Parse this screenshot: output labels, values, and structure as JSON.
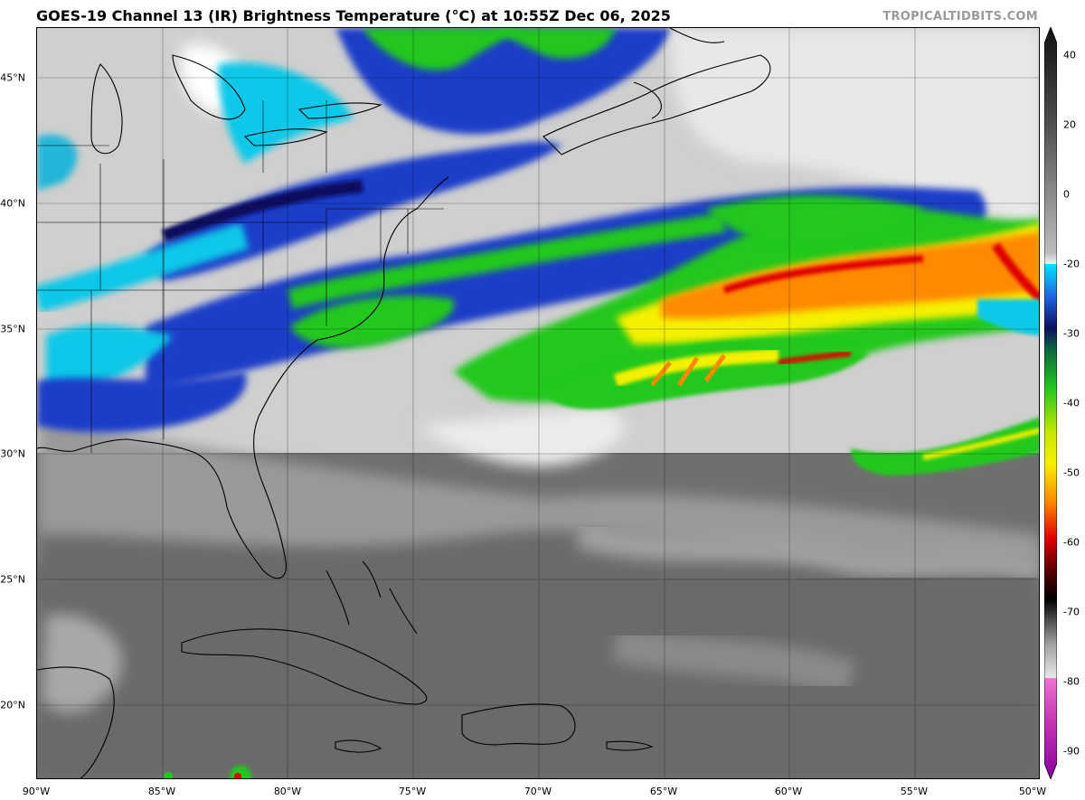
{
  "header": {
    "title": "GOES-19 Channel 13 (IR) Brightness Temperature (°C) at 10:55Z Dec 06, 2025",
    "credit": "TROPICALTIDBITS.COM"
  },
  "map": {
    "lat_labels": [
      "45°N",
      "40°N",
      "35°N",
      "30°N",
      "25°N",
      "20°N"
    ],
    "lon_labels": [
      "90°W",
      "85°W",
      "80°W",
      "75°W",
      "70°W",
      "65°W",
      "60°W",
      "55°W",
      "50°W"
    ],
    "extent": {
      "lon": [
        -90,
        -50
      ],
      "lat": [
        17,
        47
      ]
    }
  },
  "colorbar": {
    "ticks": [
      "40",
      "20",
      "0",
      "-20",
      "-30",
      "-40",
      "-50",
      "-60",
      "-70",
      "-80",
      "-90"
    ],
    "range": [
      40,
      -94
    ],
    "colors": {
      "warm_black": "#111111",
      "gray_mid": "#808080",
      "white": "#f2f2f2",
      "cyan": "#00e5ff",
      "blue": "#1a3cc8",
      "navy": "#0a1060",
      "green": "#22c81e",
      "yellow": "#f5f000",
      "orange": "#ff8a00",
      "red": "#e00000",
      "magenta": "#d040c0",
      "purple": "#8a00a0"
    }
  }
}
